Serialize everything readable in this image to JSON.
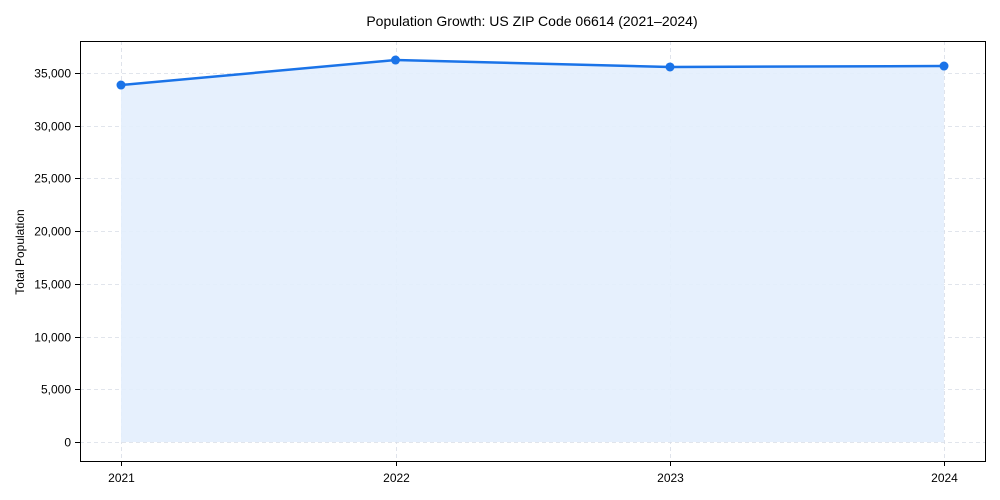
{
  "chart_data": {
    "type": "line",
    "title": "Population Growth: US ZIP Code 06614 (2021–2024)",
    "xlabel": "",
    "ylabel": "Total Population",
    "categories": [
      "2021",
      "2022",
      "2023",
      "2024"
    ],
    "series": [
      {
        "name": "Total Population",
        "values": [
          33860,
          36230,
          35570,
          35660
        ],
        "color": "#1a73e8",
        "fill": "#e3eefd"
      }
    ],
    "yticks": [
      0,
      5000,
      10000,
      15000,
      20000,
      25000,
      30000,
      35000
    ],
    "ytick_labels": [
      "0",
      "5,000",
      "10,000",
      "15,000",
      "20,000",
      "25,000",
      "30,000",
      "35,000"
    ],
    "ylim": [
      -1800,
      38035
    ],
    "grid": true,
    "legend": null,
    "area_fill": true
  }
}
